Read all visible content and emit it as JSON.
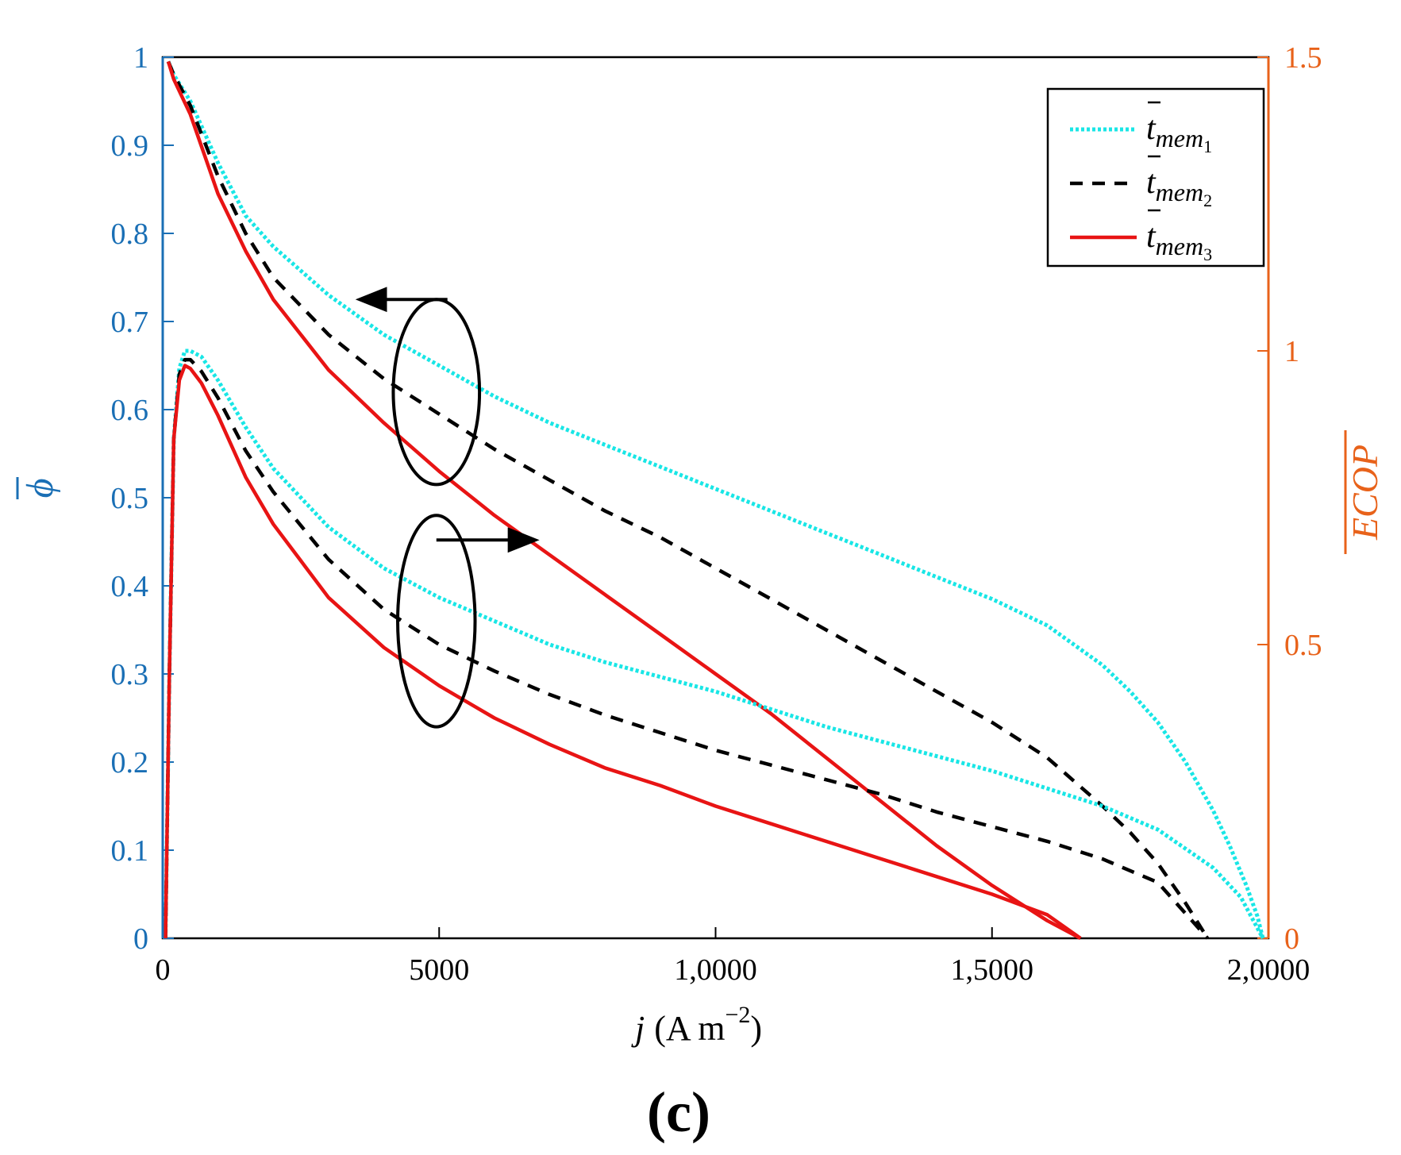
{
  "chart_data": {
    "type": "line",
    "caption": "(c)",
    "xlabel": "j (A m⁻²)",
    "xlabel_var": "j",
    "xlabel_unit": "(A m",
    "xlabel_exp": "−2",
    "xlabel_close": ")",
    "ylabel_left": "ϕ",
    "ylabel_right": "ECOP",
    "xlim": [
      0,
      20000
    ],
    "ylim_left": [
      0,
      1
    ],
    "ylim_right": [
      0,
      1.5
    ],
    "x_ticks": [
      0,
      5000,
      10000,
      15000,
      20000
    ],
    "x_tick_labels": [
      "0",
      "5000",
      "1,0000",
      "1,5000",
      "2,0000"
    ],
    "y_left_ticks": [
      0,
      0.1,
      0.2,
      0.3,
      0.4,
      0.5,
      0.6,
      0.7,
      0.8,
      0.9,
      1
    ],
    "y_left_tick_labels": [
      "0",
      "0.1",
      "0.2",
      "0.3",
      "0.4",
      "0.5",
      "0.6",
      "0.7",
      "0.8",
      "0.9",
      "1"
    ],
    "y_right_ticks": [
      0,
      0.5,
      1,
      1.5
    ],
    "y_right_tick_labels": [
      "0",
      "0.5",
      "1",
      "1.5"
    ],
    "colors": {
      "left_axis": "#1a6fb5",
      "right_axis": "#e8621a",
      "mem1": "#19e6e6",
      "mem2": "#000000",
      "mem3": "#e81414"
    },
    "legend": {
      "position": "top-right",
      "entries": [
        {
          "base": "t",
          "sub": "mem",
          "idx": "1",
          "style": "dotted",
          "color": "#19e6e6"
        },
        {
          "base": "t",
          "sub": "mem",
          "idx": "2",
          "style": "dashed",
          "color": "#000000"
        },
        {
          "base": "t",
          "sub": "mem",
          "idx": "3",
          "style": "solid",
          "color": "#e81414"
        }
      ]
    },
    "annotations": [
      {
        "type": "ellipse",
        "center": [
          4950,
          0.62
        ],
        "radii": [
          780,
          0.105
        ],
        "arrow_from": [
          5150,
          0.725
        ],
        "arrow_to": [
          3600,
          0.725
        ],
        "meaning": "upper curves refer to left axis (phi)"
      },
      {
        "type": "ellipse",
        "center": [
          4950,
          0.36
        ],
        "radii": [
          700,
          0.12
        ],
        "arrow_from": [
          4950,
          0.452
        ],
        "arrow_to": [
          6700,
          0.452
        ],
        "meaning": "lower curves refer to right axis (ECOP)"
      }
    ],
    "series": [
      {
        "name": "phi_mem1",
        "axis": "left",
        "style": "dotted",
        "color": "#19e6e6",
        "x": [
          100,
          200,
          500,
          1000,
          1500,
          2000,
          3000,
          4000,
          5000,
          6000,
          7000,
          8000,
          9000,
          10000,
          11000,
          12000,
          13000,
          14000,
          15000,
          16000,
          17000,
          17500,
          18000,
          18500,
          19000,
          19300,
          19600,
          19800,
          19900
        ],
        "y": [
          0.995,
          0.98,
          0.95,
          0.88,
          0.82,
          0.785,
          0.73,
          0.685,
          0.65,
          0.615,
          0.585,
          0.56,
          0.535,
          0.51,
          0.485,
          0.46,
          0.435,
          0.41,
          0.385,
          0.355,
          0.31,
          0.28,
          0.245,
          0.2,
          0.145,
          0.105,
          0.06,
          0.025,
          0.0
        ]
      },
      {
        "name": "phi_mem2",
        "axis": "left",
        "style": "dashed",
        "color": "#000000",
        "x": [
          100,
          200,
          500,
          1000,
          1500,
          2000,
          3000,
          4000,
          5000,
          6000,
          7000,
          8000,
          9000,
          10000,
          11000,
          12000,
          13000,
          14000,
          15000,
          16000,
          17000,
          17500,
          18000,
          18500,
          18900
        ],
        "y": [
          0.995,
          0.98,
          0.945,
          0.865,
          0.8,
          0.75,
          0.685,
          0.635,
          0.595,
          0.555,
          0.52,
          0.485,
          0.455,
          0.42,
          0.385,
          0.35,
          0.315,
          0.28,
          0.245,
          0.205,
          0.15,
          0.12,
          0.085,
          0.04,
          0.0
        ]
      },
      {
        "name": "phi_mem3",
        "axis": "left",
        "style": "solid",
        "color": "#e81414",
        "x": [
          100,
          200,
          500,
          1000,
          1500,
          2000,
          3000,
          4000,
          5000,
          6000,
          7000,
          8000,
          9000,
          10000,
          11000,
          12000,
          13000,
          14000,
          15000,
          16000,
          16600
        ],
        "y": [
          0.995,
          0.975,
          0.935,
          0.845,
          0.78,
          0.725,
          0.645,
          0.585,
          0.53,
          0.48,
          0.435,
          0.39,
          0.345,
          0.3,
          0.255,
          0.205,
          0.155,
          0.105,
          0.06,
          0.02,
          0.0
        ]
      },
      {
        "name": "ECOP_mem1",
        "axis": "right",
        "style": "dotted",
        "color": "#19e6e6",
        "x": [
          50,
          120,
          200,
          300,
          400,
          500,
          700,
          1000,
          1500,
          2000,
          3000,
          4000,
          5000,
          6000,
          7000,
          8000,
          9000,
          10000,
          11000,
          12000,
          13000,
          14000,
          15000,
          16000,
          17000,
          18000,
          19000,
          19500,
          19900
        ],
        "y": [
          0.0,
          0.45,
          0.85,
          0.97,
          1.0,
          1.0,
          0.99,
          0.95,
          0.87,
          0.8,
          0.7,
          0.63,
          0.58,
          0.54,
          0.5,
          0.47,
          0.445,
          0.42,
          0.39,
          0.36,
          0.335,
          0.31,
          0.285,
          0.255,
          0.225,
          0.185,
          0.12,
          0.07,
          0.0
        ]
      },
      {
        "name": "ECOP_mem2",
        "axis": "right",
        "style": "dashed",
        "color": "#000000",
        "x": [
          50,
          120,
          200,
          300,
          400,
          500,
          700,
          1000,
          1500,
          2000,
          3000,
          4000,
          5000,
          6000,
          7000,
          8000,
          9000,
          10000,
          11000,
          12000,
          13000,
          14000,
          15000,
          16000,
          17000,
          18000,
          18900
        ],
        "y": [
          0.0,
          0.45,
          0.85,
          0.96,
          0.985,
          0.985,
          0.965,
          0.92,
          0.83,
          0.76,
          0.645,
          0.56,
          0.5,
          0.455,
          0.415,
          0.38,
          0.35,
          0.32,
          0.295,
          0.27,
          0.245,
          0.215,
          0.19,
          0.165,
          0.135,
          0.095,
          0.0
        ]
      },
      {
        "name": "ECOP_mem3",
        "axis": "right",
        "style": "solid",
        "color": "#e81414",
        "x": [
          50,
          120,
          200,
          300,
          400,
          500,
          700,
          1000,
          1500,
          2000,
          3000,
          4000,
          5000,
          6000,
          7000,
          8000,
          9000,
          10000,
          11000,
          12000,
          13000,
          14000,
          15000,
          16000,
          16600
        ],
        "y": [
          0.0,
          0.45,
          0.85,
          0.95,
          0.975,
          0.97,
          0.945,
          0.89,
          0.785,
          0.705,
          0.58,
          0.495,
          0.43,
          0.375,
          0.33,
          0.29,
          0.26,
          0.225,
          0.195,
          0.165,
          0.135,
          0.105,
          0.075,
          0.04,
          0.0
        ]
      }
    ]
  }
}
